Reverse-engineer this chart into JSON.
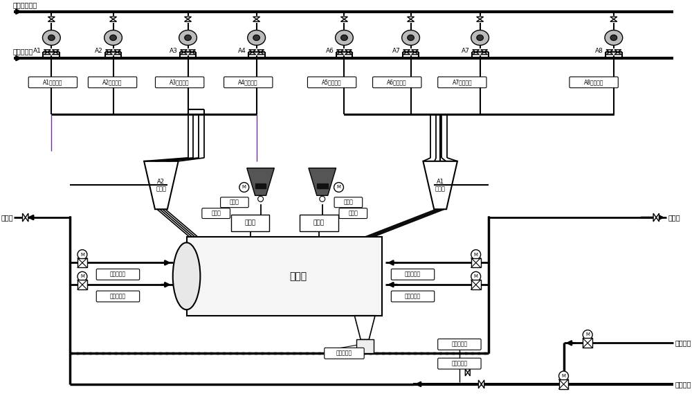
{
  "bg_color": "#ffffff",
  "top_label": "燃烧器冷却风",
  "sweep_label": "粉管清扫风",
  "burner_labels": [
    "A1",
    "A2",
    "A3",
    "A4",
    "A6",
    "A7",
    "A7",
    "A8"
  ],
  "burner_labels_actual": [
    "A1",
    "A2",
    "A3",
    "A4",
    "A6",
    "A7",
    "A8"
  ],
  "conc_labels": [
    "A1风粉浓度",
    "A2风粉浓度",
    "A3风粉浓度",
    "A4风粉浓度",
    "A5风粉浓度",
    "A6风粉浓度",
    "A7风粉浓度",
    "A8风粉浓度"
  ],
  "mill_label": "磨煤机",
  "mill_level_label": "磨煤机料位",
  "sep_L_label": "A2\n分离器",
  "sep_R_label": "A1\n分离器",
  "feeder_qty_labels": [
    "给煤量",
    "给煤量",
    "给煤量"
  ],
  "feeder_machine_labels": [
    "给煤机",
    "给煤机"
  ],
  "bypass_flow_L": "旁路风流量",
  "volume_flow_L": "容量风流量",
  "bypass_flow_R": "旁路风流量",
  "volume_flow_R": "容量风流量",
  "aux_steam_L": "自辅汽",
  "aux_steam_R": "自辅汽",
  "primary_flow": "一次风流量",
  "primary_temp": "一次风温度",
  "cold_primary": "冷一次风",
  "hot_primary": "热一次风"
}
